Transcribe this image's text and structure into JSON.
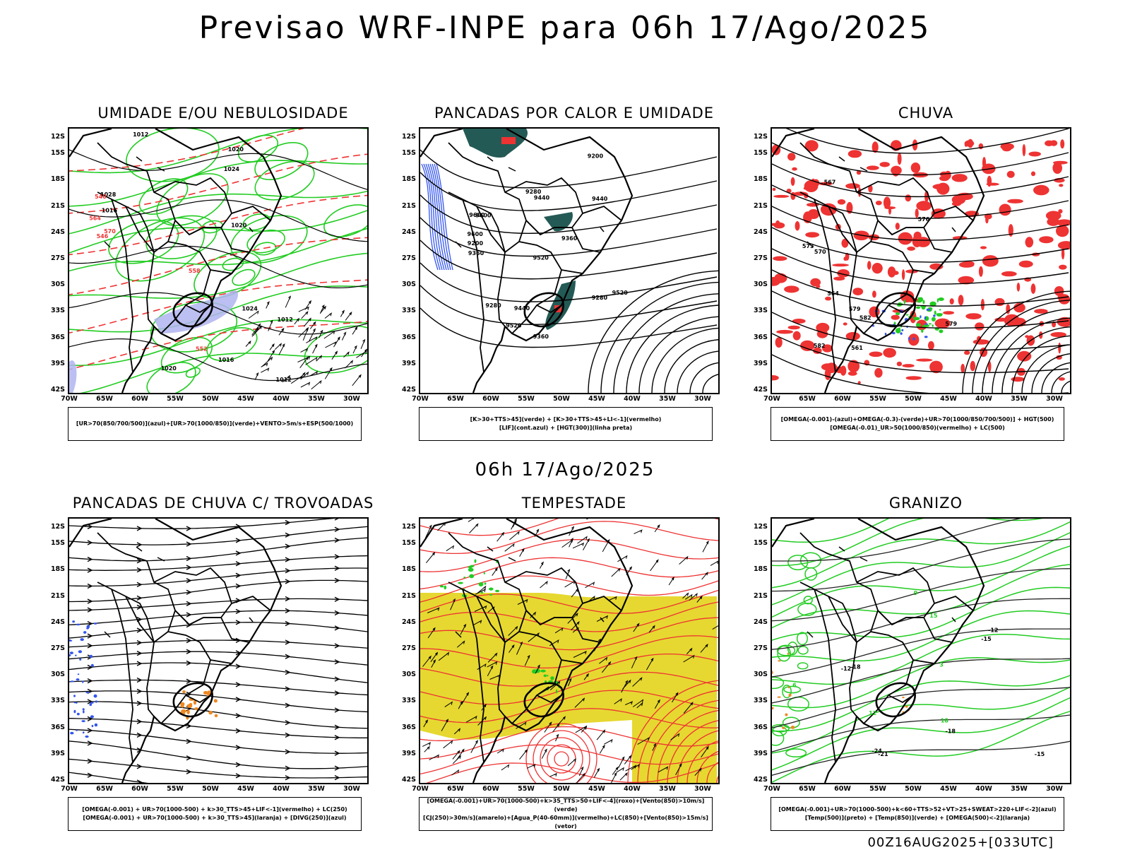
{
  "title": "Previsao WRF-INPE  para 06h 17/Ago/2025",
  "mid_title": "06h 17/Ago/2025",
  "footer": "00Z16AUG2025+[033UTC]",
  "lat_labels": [
    "12S",
    "15S",
    "18S",
    "21S",
    "24S",
    "27S",
    "30S",
    "33S",
    "36S",
    "39S",
    "42S"
  ],
  "lon_labels": [
    "70W",
    "65W",
    "60W",
    "55W",
    "50W",
    "45W",
    "40W",
    "35W",
    "30W"
  ],
  "panels": [
    {
      "title": "UMIDADE E/OU NEBULOSIDADE",
      "legend": [
        "[UR>70(850/700/500)](azul)+[UR>70(1000/850)](verde)+VENTO>5m/s+ESP(500/1000)"
      ],
      "contour_labels": [
        "1012",
        "1012",
        "1012",
        "1016",
        "1016",
        "1020",
        "1020",
        "1020",
        "1024",
        "1024",
        "1028",
        "570",
        "564",
        "558",
        "552",
        "546",
        "540"
      ]
    },
    {
      "title": "PANCADAS POR CALOR E UMIDADE",
      "legend": [
        "[K>30+TTS>45](verde) + [K>30+TTS>45+LI<-1](vermelho)",
        "[LIF](cont.azul) + [HGT(300)](linha preta)"
      ],
      "contour_labels": [
        "9600",
        "9600",
        "9600",
        "9520",
        "9520",
        "9520",
        "9440",
        "9440",
        "9440",
        "9360",
        "9360",
        "9360",
        "9280",
        "9280",
        "9280",
        "9200",
        "9200"
      ]
    },
    {
      "title": "CHUVA",
      "legend": [
        "[OMEGA(-0.001)-(azul)+OMEGA(-0.3)-(verde)+UR>70(1000/850/700/500)] + HGT(500)",
        "[OMEGA(-0.01)_UR>50(1000/850)(vermelho) + LC(500)"
      ],
      "contour_labels": [
        "579",
        "582",
        "582",
        "579",
        "576",
        "573",
        "570",
        "567",
        "564",
        "561"
      ]
    },
    {
      "title": "PANCADAS DE CHUVA C/ TROVOADAS",
      "legend": [
        "[OMEGA(-0.001) + UR>70(1000-500) + k>30_TTS>45+LIF<-1](vermelho) + LC(250)",
        "[OMEGA(-0.001) + UR>70(1000-500) + k>30_TTS>45](laranja) + [DIVG(250)](azul)"
      ]
    },
    {
      "title": "TEMPESTADE",
      "legend": [
        "[OMEGA(-0.001)+UR>70(1000-500)+k>35_TTS>50+LIF<-4](roxo)+[Vento(850)>10m/s](verde)",
        "[CJ(250)>30m/s](amarelo)+[Agua_P(40-60mm)](vermelho)+LC(850)+[Vento(850)>15m/s](vetor)"
      ]
    },
    {
      "title": "GRANIZO",
      "legend": [
        "[OMEGA(-0.001)+UR>70(1000-500)+k<60+TTS>52+VT>25+SWEAT>220+LIF<-2](azul)",
        "[Temp(500)](preto) + [Temp(850)](verde) + [OMEGA(500)<-2](laranja)"
      ],
      "contour_labels": [
        "-12",
        "-12",
        "-15",
        "-15",
        "-18",
        "-18",
        "-21",
        "-24",
        "3",
        "6",
        "9",
        "12",
        "15",
        "18"
      ]
    }
  ],
  "colors": {
    "map": "#000000",
    "green": "#22cc22",
    "red": "#ee3333",
    "blue": "#3355ee",
    "teal": "#245a55",
    "yellow": "#e6d830",
    "orange": "#ee8822",
    "lavender": "#b0b4ee"
  }
}
